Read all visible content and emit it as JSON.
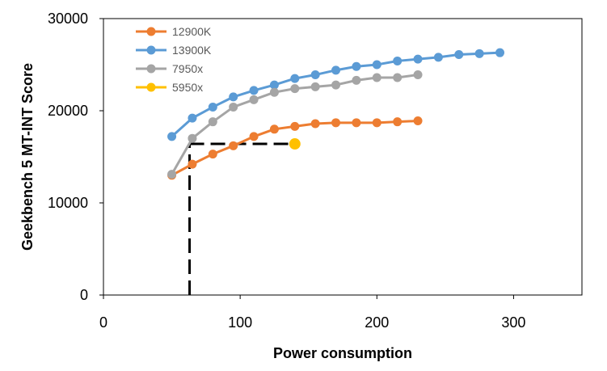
{
  "chart_data": {
    "type": "line",
    "title": "",
    "xlabel": "Power consumption",
    "ylabel": "Geekbench 5 MT-INT Score",
    "xlim": [
      0,
      350
    ],
    "ylim": [
      0,
      30000
    ],
    "x_ticks": [
      0,
      100,
      200,
      300
    ],
    "y_ticks": [
      0,
      10000,
      20000,
      30000
    ],
    "x_tick_labels": [
      "0",
      "100",
      "200",
      "300"
    ],
    "y_tick_labels": [
      "0",
      "10000",
      "20000",
      "30000"
    ],
    "grid": false,
    "legend_position": "top-left",
    "series": [
      {
        "name": "12900K",
        "color": "#ED7D31",
        "x": [
          50,
          65,
          80,
          95,
          110,
          125,
          140,
          155,
          170,
          185,
          200,
          215,
          230
        ],
        "y": [
          13000,
          14200,
          15300,
          16200,
          17200,
          18000,
          18300,
          18600,
          18700,
          18700,
          18700,
          18800,
          18900
        ]
      },
      {
        "name": "13900K",
        "color": "#5B9BD5",
        "x": [
          50,
          65,
          80,
          95,
          110,
          125,
          140,
          155,
          170,
          185,
          200,
          215,
          230,
          245,
          260,
          275,
          290
        ],
        "y": [
          17200,
          19200,
          20400,
          21500,
          22200,
          22800,
          23500,
          23900,
          24400,
          24800,
          25000,
          25400,
          25600,
          25800,
          26100,
          26200,
          26300
        ]
      },
      {
        "name": "7950x",
        "color": "#A5A5A5",
        "x": [
          50,
          65,
          80,
          95,
          110,
          125,
          140,
          155,
          170,
          185,
          200,
          215,
          230
        ],
        "y": [
          13100,
          17000,
          18800,
          20400,
          21200,
          22000,
          22400,
          22600,
          22800,
          23300,
          23600,
          23600,
          23900
        ]
      },
      {
        "name": "5950x",
        "color": "#FFC000",
        "x": [
          140
        ],
        "y": [
          16400
        ]
      }
    ],
    "reference_lines": {
      "style": "dashed",
      "color": "#000000",
      "x_value": 63,
      "y_value": 16400,
      "x_end": 140
    }
  }
}
